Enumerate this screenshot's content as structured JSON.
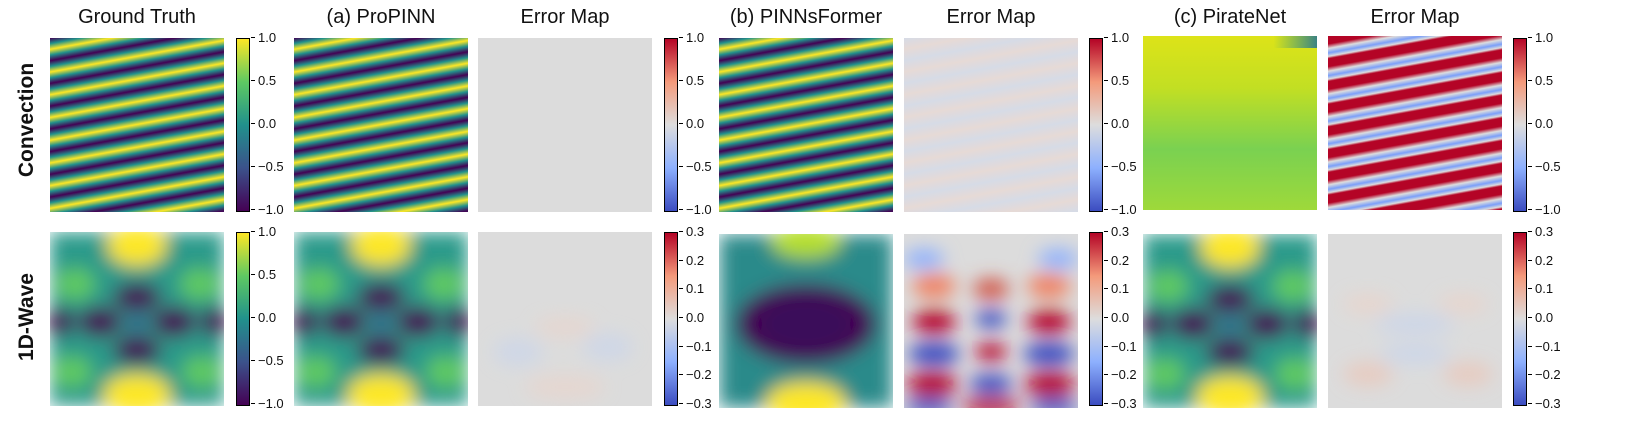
{
  "column_titles": [
    "Ground Truth",
    "(a) ProPINN",
    "Error Map",
    "(b) PINNsFormer",
    "Error Map",
    "(c) PirateNet",
    "Error Map"
  ],
  "row_labels": [
    "Convection",
    "1D-Wave"
  ],
  "colors": {
    "viridis": [
      "#440154",
      "#3b528b",
      "#21918c",
      "#5ec962",
      "#fde725"
    ],
    "coolwarm": [
      "#3b4cc0",
      "#8db0fe",
      "#dddddd",
      "#f49a7b",
      "#b40426"
    ]
  },
  "chart_data": [
    {
      "type": "heatmap",
      "title": "Convection colorbars",
      "colorbars": [
        {
          "colormap": "viridis",
          "range": [
            -1.0,
            1.0
          ],
          "ticks": [
            "1.0",
            "0.5",
            "0.0",
            "−0.5",
            "−1.0"
          ]
        },
        {
          "colormap": "coolwarm",
          "range": [
            -1.0,
            1.0
          ],
          "ticks": [
            "1.0",
            "0.5",
            "0.0",
            "−0.5",
            "−1.0"
          ]
        },
        {
          "colormap": "coolwarm",
          "range": [
            -1.0,
            1.0
          ],
          "ticks": [
            "1.0",
            "0.5",
            "0.0",
            "−0.5",
            "−1.0"
          ]
        },
        {
          "colormap": "coolwarm",
          "range": [
            -1.0,
            1.0
          ],
          "ticks": [
            "1.0",
            "0.5",
            "0.0",
            "−0.5",
            "−1.0"
          ]
        }
      ],
      "panels": [
        "ground truth: diagonal stripes",
        "ProPINN: matches ground truth",
        "ProPINN error ≈ 0",
        "PINNsFormer: matches ground truth",
        "PINNsFormer error ≈ 0",
        "PirateNet: smooth, fails to capture stripes",
        "PirateNet error: large striped error (±1)"
      ]
    },
    {
      "type": "heatmap",
      "title": "1D-Wave colorbars",
      "colorbars": [
        {
          "colormap": "viridis",
          "range": [
            -1.0,
            1.0
          ],
          "ticks": [
            "1.0",
            "0.5",
            "0.0",
            "−0.5",
            "−1.0"
          ]
        },
        {
          "colormap": "coolwarm",
          "range": [
            -0.3,
            0.3
          ],
          "ticks": [
            "0.3",
            "0.2",
            "0.1",
            "0.0",
            "−0.1",
            "−0.2",
            "−0.3"
          ]
        },
        {
          "colormap": "coolwarm",
          "range": [
            -0.3,
            0.3
          ],
          "ticks": [
            "0.3",
            "0.2",
            "0.1",
            "0.0",
            "−0.1",
            "−0.2",
            "−0.3"
          ]
        },
        {
          "colormap": "coolwarm",
          "range": [
            -0.3,
            0.3
          ],
          "ticks": [
            "0.3",
            "0.2",
            "0.1",
            "0.0",
            "−0.1",
            "−0.2",
            "−0.3"
          ]
        }
      ],
      "panels": [
        "ground truth: wave interference pattern",
        "ProPINN: matches ground truth",
        "ProPINN error small",
        "PINNsFormer: distorted",
        "PINNsFormer error: large oscillating error",
        "PirateNet: matches ground truth",
        "PirateNet error small"
      ]
    }
  ]
}
